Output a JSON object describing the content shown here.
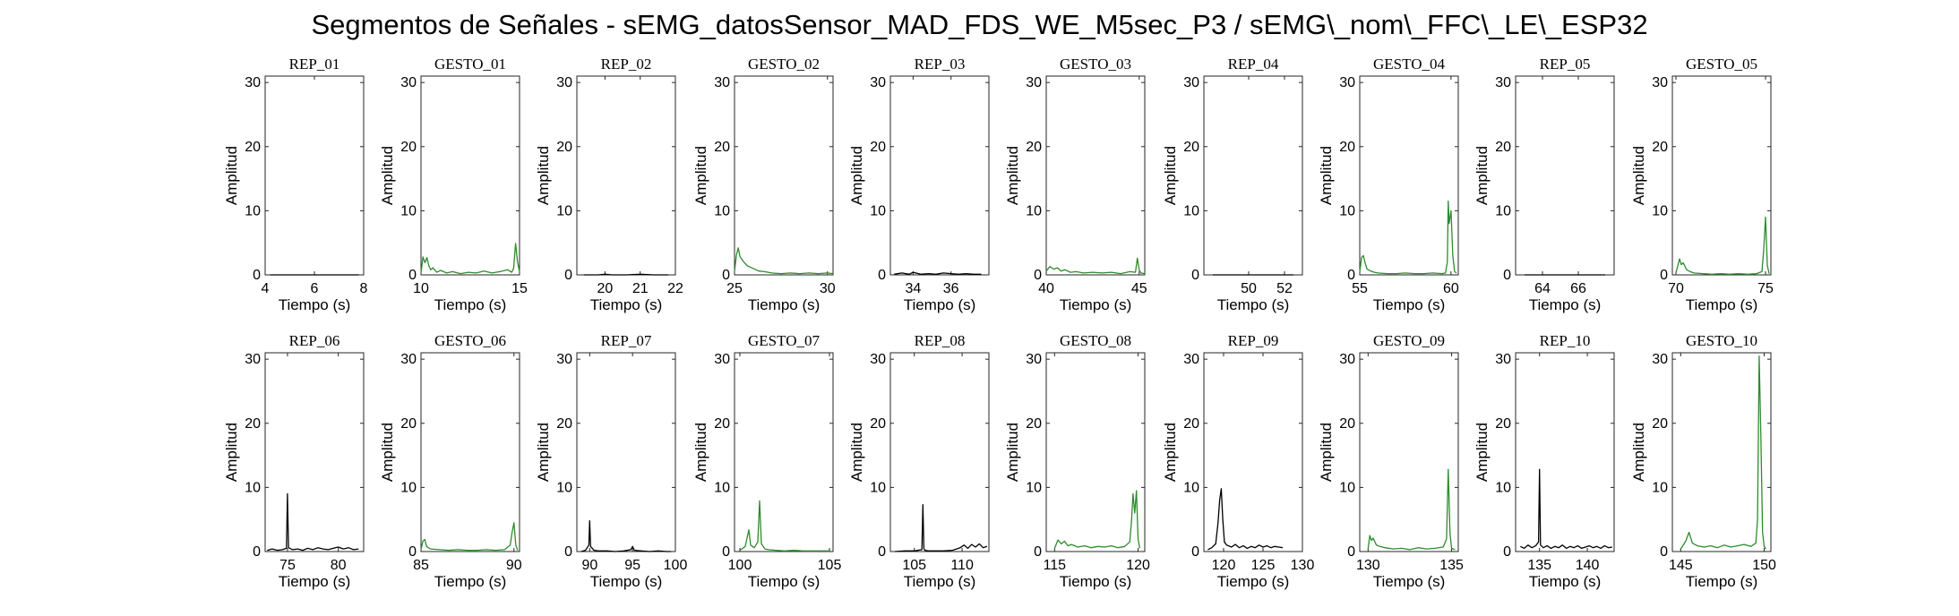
{
  "figure": {
    "title": "Segmentos de Señales - sEMG_datosSensor_MAD_FDS_WE_M5sec_P3 / sEMG\\_nom\\_FFC\\_LE\\_ESP32"
  },
  "colors": {
    "rep": "#000000",
    "gesto": "#2e8b2e"
  },
  "chart_data": [
    {
      "type": "line",
      "title": "REP_01",
      "xlabel": "Tiempo (s)",
      "ylabel": "Amplitud",
      "xlim": [
        4,
        8
      ],
      "ylim": [
        0,
        31
      ],
      "xticks": [
        4,
        6,
        8
      ],
      "yticks": [
        0,
        10,
        20,
        30
      ],
      "color": "#000000",
      "x": [
        4.2,
        4.6,
        5.0,
        5.4,
        5.8,
        6.2,
        6.6,
        7.0,
        7.4,
        7.8
      ],
      "y": [
        0,
        0,
        0,
        0,
        0,
        0,
        0,
        0,
        0,
        0
      ]
    },
    {
      "type": "line",
      "title": "GESTO_01",
      "xlabel": "Tiempo (s)",
      "ylabel": "Amplitud",
      "xlim": [
        10,
        15
      ],
      "ylim": [
        0,
        31
      ],
      "xticks": [
        10,
        15
      ],
      "yticks": [
        0,
        10,
        20,
        30
      ],
      "color": "#2e8b2e",
      "x": [
        10.0,
        10.1,
        10.2,
        10.3,
        10.4,
        10.5,
        10.6,
        10.8,
        11.0,
        11.3,
        11.6,
        12.0,
        12.4,
        12.8,
        13.2,
        13.6,
        14.0,
        14.4,
        14.6,
        14.7,
        14.8,
        14.9,
        15.0
      ],
      "y": [
        0.3,
        2.8,
        1.9,
        2.7,
        1.4,
        0.8,
        1.1,
        0.4,
        0.7,
        0.3,
        0.5,
        0.2,
        0.4,
        0.3,
        0.6,
        0.3,
        0.5,
        0.8,
        0.4,
        1.0,
        4.9,
        2.0,
        0.5
      ]
    },
    {
      "type": "line",
      "title": "REP_02",
      "xlabel": "Tiempo (s)",
      "ylabel": "Amplitud",
      "xlim": [
        19.2,
        22
      ],
      "ylim": [
        0,
        31
      ],
      "xticks": [
        20,
        21,
        22
      ],
      "yticks": [
        0,
        10,
        20,
        30
      ],
      "color": "#000000",
      "x": [
        19.4,
        19.8,
        20.0,
        20.2,
        20.6,
        21.0,
        21.4,
        21.8
      ],
      "y": [
        0,
        0,
        0.1,
        0,
        0,
        0.1,
        0,
        0
      ]
    },
    {
      "type": "line",
      "title": "GESTO_02",
      "xlabel": "Tiempo (s)",
      "ylabel": "Amplitud",
      "xlim": [
        25,
        30.3
      ],
      "ylim": [
        0,
        31
      ],
      "xticks": [
        25,
        30
      ],
      "yticks": [
        0,
        10,
        20,
        30
      ],
      "color": "#2e8b2e",
      "x": [
        25.0,
        25.1,
        25.2,
        25.3,
        25.5,
        25.7,
        26.0,
        26.3,
        26.6,
        27.0,
        27.5,
        28.0,
        28.5,
        29.0,
        29.5,
        30.0,
        30.3
      ],
      "y": [
        0.5,
        3.1,
        4.2,
        2.8,
        2.0,
        1.4,
        1.0,
        0.6,
        0.5,
        0.3,
        0.2,
        0.3,
        0.2,
        0.3,
        0.2,
        0.3,
        0.2
      ]
    },
    {
      "type": "line",
      "title": "REP_03",
      "xlabel": "Tiempo (s)",
      "ylabel": "Amplitud",
      "xlim": [
        32.8,
        38
      ],
      "ylim": [
        0,
        31
      ],
      "xticks": [
        34,
        36
      ],
      "yticks": [
        0,
        10,
        20,
        30
      ],
      "color": "#000000",
      "x": [
        33.0,
        33.4,
        33.8,
        34.0,
        34.4,
        34.8,
        35.2,
        35.6,
        36.0,
        36.4,
        36.8,
        37.2,
        37.6
      ],
      "y": [
        0.1,
        0.3,
        0.1,
        0.4,
        0.1,
        0.2,
        0.1,
        0.3,
        0.2,
        0.1,
        0.2,
        0.1,
        0.1
      ]
    },
    {
      "type": "line",
      "title": "GESTO_03",
      "xlabel": "Tiempo (s)",
      "ylabel": "Amplitud",
      "xlim": [
        40,
        45.3
      ],
      "ylim": [
        0,
        31
      ],
      "xticks": [
        40,
        45
      ],
      "yticks": [
        0,
        10,
        20,
        30
      ],
      "color": "#2e8b2e",
      "x": [
        40.0,
        40.2,
        40.4,
        40.6,
        40.8,
        41.0,
        41.3,
        41.6,
        42.0,
        42.5,
        43.0,
        43.5,
        44.0,
        44.5,
        44.8,
        44.9,
        45.0,
        45.1,
        45.3
      ],
      "y": [
        0.6,
        1.3,
        0.9,
        1.1,
        0.6,
        0.8,
        0.4,
        0.5,
        0.3,
        0.4,
        0.3,
        0.4,
        0.2,
        0.5,
        0.4,
        2.6,
        0.8,
        0.3,
        0.2
      ]
    },
    {
      "type": "line",
      "title": "REP_04",
      "xlabel": "Tiempo (s)",
      "ylabel": "Amplitud",
      "xlim": [
        47.5,
        53
      ],
      "ylim": [
        0,
        31
      ],
      "xticks": [
        50,
        52
      ],
      "yticks": [
        0,
        10,
        20,
        30
      ],
      "color": "#000000",
      "x": [
        48.0,
        48.5,
        49.0,
        49.5,
        50.0,
        50.5,
        51.0,
        51.5,
        52.0,
        52.5
      ],
      "y": [
        0,
        0,
        0,
        0,
        0,
        0,
        0,
        0,
        0,
        0
      ]
    },
    {
      "type": "line",
      "title": "GESTO_04",
      "xlabel": "Tiempo (s)",
      "ylabel": "Amplitud",
      "xlim": [
        55,
        60.4
      ],
      "ylim": [
        0,
        31
      ],
      "xticks": [
        55,
        60
      ],
      "yticks": [
        0,
        10,
        20,
        30
      ],
      "color": "#2e8b2e",
      "x": [
        55.0,
        55.1,
        55.2,
        55.3,
        55.4,
        55.6,
        55.8,
        56.0,
        56.5,
        57.0,
        57.5,
        58.0,
        58.5,
        59.0,
        59.5,
        59.7,
        59.8,
        59.85,
        59.9,
        60.0,
        60.1,
        60.2,
        60.3
      ],
      "y": [
        0.4,
        2.7,
        3.0,
        1.8,
        0.9,
        0.6,
        0.4,
        0.3,
        0.2,
        0.2,
        0.3,
        0.2,
        0.2,
        0.3,
        0.2,
        0.3,
        2.0,
        11.5,
        8.0,
        10.0,
        3.0,
        0.5,
        0.3
      ]
    },
    {
      "type": "line",
      "title": "REP_05",
      "xlabel": "Tiempo (s)",
      "ylabel": "Amplitud",
      "xlim": [
        62.5,
        68
      ],
      "ylim": [
        0,
        31
      ],
      "xticks": [
        64,
        66
      ],
      "yticks": [
        0,
        10,
        20,
        30
      ],
      "color": "#000000",
      "x": [
        63.0,
        63.5,
        64.0,
        64.5,
        65.0,
        65.5,
        66.0,
        66.5,
        67.0,
        67.5
      ],
      "y": [
        0,
        0,
        0,
        0,
        0,
        0,
        0,
        0,
        0,
        0
      ]
    },
    {
      "type": "line",
      "title": "GESTO_05",
      "xlabel": "Tiempo (s)",
      "ylabel": "Amplitud",
      "xlim": [
        69.8,
        75.3
      ],
      "ylim": [
        0,
        31
      ],
      "xticks": [
        70,
        75
      ],
      "yticks": [
        0,
        10,
        20,
        30
      ],
      "color": "#2e8b2e",
      "x": [
        70.0,
        70.2,
        70.3,
        70.4,
        70.6,
        70.8,
        71.0,
        71.5,
        72.0,
        72.5,
        73.0,
        73.5,
        74.0,
        74.5,
        74.8,
        74.9,
        75.0,
        75.1,
        75.2
      ],
      "y": [
        0.3,
        2.5,
        1.6,
        1.9,
        0.8,
        0.5,
        0.3,
        0.2,
        0.1,
        0.2,
        0.1,
        0.2,
        0.1,
        0.2,
        0.5,
        4.0,
        9.0,
        1.5,
        0.2
      ]
    },
    {
      "type": "line",
      "title": "REP_06",
      "xlabel": "Tiempo (s)",
      "ylabel": "Amplitud",
      "xlim": [
        72.8,
        82.5
      ],
      "ylim": [
        0,
        31
      ],
      "xticks": [
        75,
        80
      ],
      "yticks": [
        0,
        10,
        20,
        30
      ],
      "color": "#000000",
      "x": [
        73.0,
        73.5,
        74.0,
        74.5,
        74.9,
        75.0,
        75.1,
        75.5,
        76.0,
        76.5,
        77.0,
        77.5,
        78.0,
        78.5,
        79.0,
        79.5,
        80.0,
        80.5,
        81.0,
        81.5,
        82.0
      ],
      "y": [
        0.2,
        0.4,
        0.2,
        0.3,
        0.5,
        9.0,
        0.6,
        0.3,
        0.4,
        0.2,
        0.5,
        0.3,
        0.6,
        0.4,
        0.3,
        0.5,
        0.7,
        0.4,
        0.6,
        0.3,
        0.4
      ]
    },
    {
      "type": "line",
      "title": "GESTO_06",
      "xlabel": "Tiempo (s)",
      "ylabel": "Amplitud",
      "xlim": [
        85,
        90.3
      ],
      "ylim": [
        0,
        31
      ],
      "xticks": [
        85,
        90
      ],
      "yticks": [
        0,
        10,
        20,
        30
      ],
      "color": "#2e8b2e",
      "x": [
        85.0,
        85.1,
        85.2,
        85.3,
        85.5,
        86.0,
        86.5,
        87.0,
        87.5,
        88.0,
        88.5,
        89.0,
        89.5,
        89.8,
        89.9,
        90.0,
        90.1,
        90.2
      ],
      "y": [
        0.3,
        1.6,
        1.9,
        0.8,
        0.4,
        0.3,
        0.2,
        0.3,
        0.2,
        0.2,
        0.3,
        0.2,
        0.3,
        1.0,
        3.0,
        4.5,
        1.0,
        0.2
      ]
    },
    {
      "type": "line",
      "title": "REP_07",
      "xlabel": "Tiempo (s)",
      "ylabel": "Amplitud",
      "xlim": [
        88.5,
        100
      ],
      "ylim": [
        0,
        31
      ],
      "xticks": [
        90,
        95,
        100
      ],
      "yticks": [
        0,
        10,
        20,
        30
      ],
      "color": "#000000",
      "x": [
        89.0,
        89.5,
        89.9,
        90.0,
        90.1,
        90.5,
        91.0,
        92.0,
        93.0,
        94.0,
        94.8,
        95.0,
        95.2,
        96.0,
        97.0,
        98.0,
        99.0,
        99.5
      ],
      "y": [
        0,
        0.2,
        1.0,
        4.8,
        0.8,
        0.2,
        0.1,
        0.1,
        0,
        0.1,
        0.3,
        0.8,
        0.2,
        0.1,
        0,
        0.1,
        0,
        0
      ]
    },
    {
      "type": "line",
      "title": "GESTO_07",
      "xlabel": "Tiempo (s)",
      "ylabel": "Amplitud",
      "xlim": [
        99.7,
        105.2
      ],
      "ylim": [
        0,
        31
      ],
      "xticks": [
        100,
        105
      ],
      "yticks": [
        0,
        10,
        20,
        30
      ],
      "color": "#2e8b2e",
      "x": [
        100.0,
        100.3,
        100.5,
        100.6,
        100.8,
        101.0,
        101.1,
        101.2,
        101.4,
        101.6,
        102.0,
        102.5,
        103.0,
        103.5,
        104.0,
        104.5,
        105.0
      ],
      "y": [
        0.2,
        0.8,
        3.4,
        1.0,
        0.6,
        1.5,
        7.9,
        1.2,
        0.4,
        0.3,
        0.2,
        0.1,
        0.2,
        0.1,
        0.1,
        0.1,
        0.1
      ]
    },
    {
      "type": "line",
      "title": "REP_08",
      "xlabel": "Tiempo (s)",
      "ylabel": "Amplitud",
      "xlim": [
        102.5,
        112.8
      ],
      "ylim": [
        0,
        31
      ],
      "xticks": [
        105,
        110
      ],
      "yticks": [
        0,
        10,
        20,
        30
      ],
      "color": "#000000",
      "x": [
        103.0,
        104.0,
        105.0,
        105.8,
        105.9,
        106.0,
        106.1,
        106.5,
        107.0,
        108.0,
        109.0,
        109.8,
        110.2,
        110.6,
        111.0,
        111.4,
        111.8,
        112.2,
        112.6
      ],
      "y": [
        0,
        0.1,
        0.1,
        0.3,
        7.3,
        0.5,
        0.2,
        0.1,
        0.1,
        0.1,
        0.2,
        0.6,
        1.0,
        0.5,
        1.1,
        0.7,
        1.2,
        0.6,
        0.8
      ]
    },
    {
      "type": "line",
      "title": "GESTO_08",
      "xlabel": "Tiempo (s)",
      "ylabel": "Amplitud",
      "xlim": [
        114.5,
        120.4
      ],
      "ylim": [
        0,
        31
      ],
      "xticks": [
        115,
        120
      ],
      "yticks": [
        0,
        10,
        20,
        30
      ],
      "color": "#2e8b2e",
      "x": [
        115.0,
        115.2,
        115.4,
        115.6,
        115.8,
        116.0,
        116.4,
        116.8,
        117.2,
        117.6,
        118.0,
        118.4,
        118.8,
        119.2,
        119.5,
        119.6,
        119.7,
        119.8,
        119.9,
        120.0,
        120.1
      ],
      "y": [
        0.5,
        1.8,
        1.2,
        1.6,
        0.9,
        1.1,
        0.7,
        0.9,
        0.6,
        0.8,
        0.7,
        0.9,
        0.6,
        0.8,
        1.5,
        4.5,
        9.0,
        6.0,
        9.5,
        2.0,
        0.5
      ]
    },
    {
      "type": "line",
      "title": "REP_09",
      "xlabel": "Tiempo (s)",
      "ylabel": "Amplitud",
      "xlim": [
        117.5,
        130
      ],
      "ylim": [
        0,
        31
      ],
      "xticks": [
        120,
        125,
        130
      ],
      "yticks": [
        0,
        10,
        20,
        30
      ],
      "color": "#000000",
      "x": [
        118.0,
        118.5,
        119.0,
        119.3,
        119.5,
        119.7,
        119.9,
        120.1,
        120.4,
        121.0,
        121.5,
        122.0,
        122.5,
        123.0,
        123.5,
        124.0,
        124.5,
        125.0,
        125.5,
        126.0,
        126.5,
        127.0,
        127.5
      ],
      "y": [
        0.3,
        0.6,
        1.2,
        4.5,
        8.0,
        9.8,
        5.0,
        1.5,
        1.0,
        0.7,
        1.1,
        0.6,
        0.9,
        0.5,
        0.8,
        0.6,
        1.0,
        0.7,
        0.9,
        0.6,
        0.8,
        0.7,
        0.6
      ]
    },
    {
      "type": "line",
      "title": "GESTO_09",
      "xlabel": "Tiempo (s)",
      "ylabel": "Amplitud",
      "xlim": [
        129.5,
        135.4
      ],
      "ylim": [
        0,
        31
      ],
      "xticks": [
        130,
        135
      ],
      "yticks": [
        0,
        10,
        20,
        30
      ],
      "color": "#2e8b2e",
      "x": [
        130.0,
        130.1,
        130.2,
        130.3,
        130.5,
        130.7,
        131.0,
        131.5,
        132.0,
        132.5,
        133.0,
        133.5,
        134.0,
        134.5,
        134.7,
        134.8,
        134.9,
        135.0,
        135.2
      ],
      "y": [
        0.4,
        2.5,
        1.7,
        2.1,
        1.0,
        0.8,
        0.6,
        0.4,
        0.5,
        0.3,
        0.6,
        0.4,
        0.5,
        0.7,
        2.0,
        12.8,
        3.0,
        0.5,
        0.3
      ]
    },
    {
      "type": "line",
      "title": "REP_10",
      "xlabel": "Tiempo (s)",
      "ylabel": "Amplitud",
      "xlim": [
        132.5,
        142.8
      ],
      "ylim": [
        0,
        31
      ],
      "xticks": [
        135,
        140
      ],
      "yticks": [
        0,
        10,
        20,
        30
      ],
      "color": "#000000",
      "x": [
        133.0,
        133.4,
        133.8,
        134.2,
        134.6,
        134.9,
        135.0,
        135.1,
        135.4,
        135.8,
        136.2,
        136.6,
        137.0,
        137.4,
        137.8,
        138.2,
        138.6,
        139.0,
        139.4,
        139.8,
        140.2,
        140.6,
        141.0,
        141.4,
        141.8,
        142.2,
        142.6
      ],
      "y": [
        0.8,
        0.5,
        1.0,
        0.6,
        0.9,
        1.5,
        12.8,
        1.0,
        0.6,
        0.9,
        0.5,
        0.8,
        0.6,
        1.0,
        0.5,
        0.8,
        0.6,
        0.9,
        0.5,
        0.7,
        0.9,
        0.6,
        0.8,
        0.5,
        0.9,
        0.6,
        0.7
      ]
    },
    {
      "type": "line",
      "title": "GESTO_10",
      "xlabel": "Tiempo (s)",
      "ylabel": "Amplitud",
      "xlim": [
        144.5,
        150.4
      ],
      "ylim": [
        0,
        31
      ],
      "xticks": [
        145,
        150
      ],
      "yticks": [
        0,
        10,
        20,
        30
      ],
      "color": "#2e8b2e",
      "x": [
        145.0,
        145.3,
        145.5,
        145.7,
        146.0,
        146.4,
        146.8,
        147.2,
        147.6,
        148.0,
        148.4,
        148.8,
        149.2,
        149.5,
        149.6,
        149.7,
        149.8,
        149.9,
        150.0,
        150.1
      ],
      "y": [
        0.4,
        1.6,
        3.0,
        1.3,
        0.9,
        0.7,
        0.9,
        0.6,
        1.0,
        0.7,
        0.9,
        1.1,
        0.8,
        1.3,
        5.0,
        30.5,
        18.0,
        3.0,
        0.8,
        0.4
      ]
    }
  ]
}
